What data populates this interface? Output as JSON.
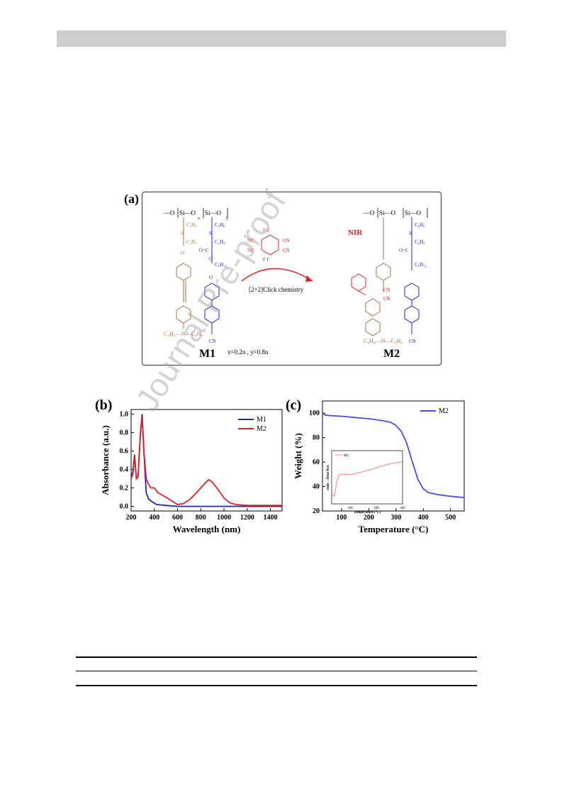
{
  "scheme": {
    "label": "(a)",
    "m1_label": "M1",
    "m2_label": "M2",
    "ratio": "x=0.2n , y=0.8n",
    "reaction_label": "[2+2]Click chemistry",
    "nir_label": "NIR"
  },
  "panel_b": {
    "label": "(b)"
  },
  "panel_c": {
    "label": "(c)"
  },
  "watermark": "Journal Pre-proof",
  "chart_data": [
    {
      "type": "line",
      "xlabel": "Wavelength (nm)",
      "ylabel": "Absorbance (a.u.)",
      "xlim": [
        200,
        1500
      ],
      "ylim": [
        -0.05,
        1.05
      ],
      "xticks": [
        200,
        400,
        600,
        800,
        1000,
        1200,
        1400
      ],
      "yticks": [
        0.0,
        0.2,
        0.4,
        0.6,
        0.8,
        1.0
      ],
      "legend": "top-right",
      "series": [
        {
          "name": "M1",
          "color": "#1f1fe0",
          "x": [
            200,
            215,
            230,
            245,
            260,
            280,
            295,
            310,
            330,
            350,
            380,
            420,
            500,
            600,
            800,
            1000,
            1500
          ],
          "y": [
            0.3,
            0.38,
            0.56,
            0.3,
            0.32,
            0.8,
            1.0,
            0.6,
            0.15,
            0.08,
            0.05,
            0.02,
            0.01,
            0.0,
            0.0,
            0.0,
            0.0
          ]
        },
        {
          "name": "M2",
          "color": "#e01f1f",
          "x": [
            200,
            215,
            230,
            245,
            260,
            280,
            295,
            310,
            330,
            345,
            370,
            400,
            430,
            470,
            500,
            550,
            600,
            650,
            700,
            750,
            800,
            850,
            870,
            900,
            950,
            1000,
            1050,
            1100,
            1200,
            1300,
            1500
          ],
          "y": [
            0.3,
            0.35,
            0.55,
            0.3,
            0.32,
            0.78,
            0.97,
            0.6,
            0.3,
            0.25,
            0.2,
            0.2,
            0.15,
            0.12,
            0.1,
            0.06,
            0.02,
            0.03,
            0.07,
            0.13,
            0.2,
            0.27,
            0.29,
            0.26,
            0.18,
            0.09,
            0.04,
            0.02,
            0.01,
            0.01,
            0.01
          ]
        }
      ]
    },
    {
      "type": "line",
      "xlabel": "Temperature (°C)",
      "ylabel": "Weight (%)",
      "xlim": [
        30,
        550
      ],
      "ylim": [
        20,
        110
      ],
      "xticks": [
        100,
        200,
        300,
        400,
        500
      ],
      "yticks": [
        20,
        40,
        60,
        80,
        100
      ],
      "legend": "top-right",
      "series": [
        {
          "name": "M2",
          "color": "#4a4af0",
          "x": [
            30,
            40,
            60,
            100,
            150,
            200,
            250,
            280,
            300,
            320,
            340,
            360,
            380,
            400,
            420,
            450,
            500,
            550
          ],
          "y": [
            100,
            98.5,
            98,
            97.5,
            96.5,
            95.5,
            94,
            92.5,
            90,
            85,
            75,
            60,
            46,
            38,
            35,
            33.5,
            32,
            31
          ]
        }
      ],
      "inset": {
        "xlabel": "Temperature (°C)",
        "ylabel": "endo→Heat flow",
        "xticks": [
          100,
          200,
          300
        ],
        "xlim": [
          30,
          300
        ],
        "series": [
          {
            "name": "M2",
            "color": "#f08080",
            "x": [
              30,
              40,
              50,
              60,
              80,
              100,
              150,
              200,
              250,
              300
            ],
            "y": [
              0.1,
              0.05,
              0.45,
              0.6,
              0.62,
              0.6,
              0.68,
              0.78,
              0.88,
              0.93
            ]
          }
        ]
      }
    }
  ]
}
